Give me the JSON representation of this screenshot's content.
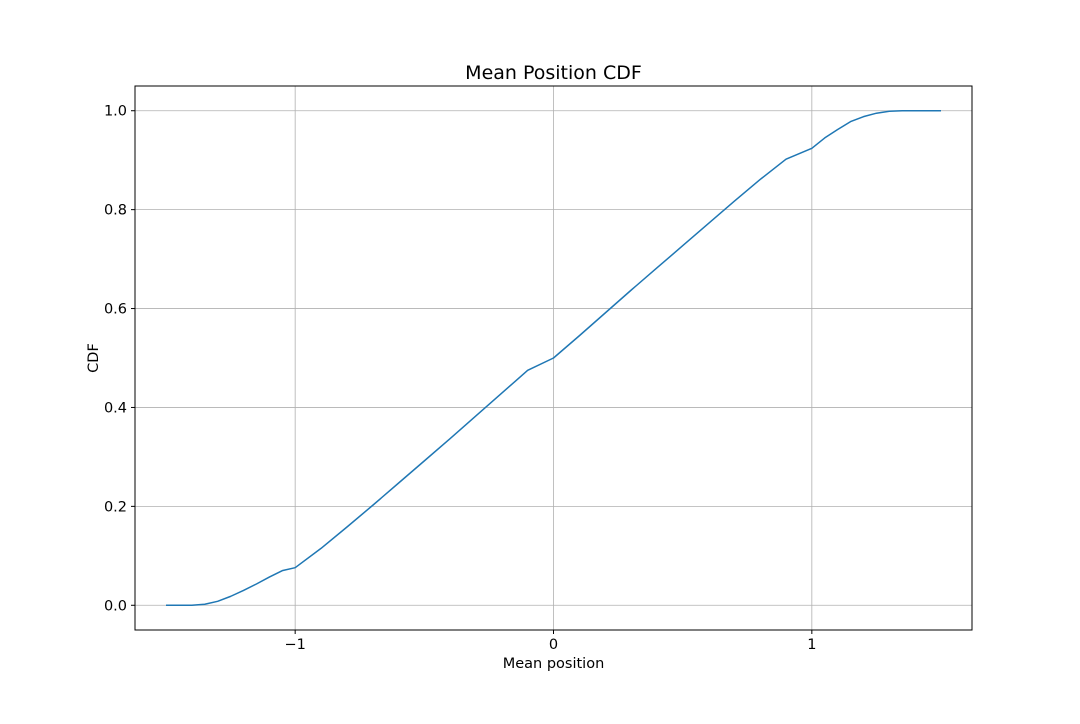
{
  "chart_data": {
    "type": "line",
    "title": "Mean Position CDF",
    "xlabel": "Mean position",
    "ylabel": "CDF",
    "xlim": [
      -1.62,
      1.62
    ],
    "ylim": [
      -0.05,
      1.05
    ],
    "xticks": [
      -1,
      0,
      1
    ],
    "xtick_labels": [
      "−1",
      "0",
      "1"
    ],
    "yticks": [
      0.0,
      0.2,
      0.4,
      0.6,
      0.8,
      1.0
    ],
    "ytick_labels": [
      "0.0",
      "0.2",
      "0.4",
      "0.6",
      "0.8",
      "1.0"
    ],
    "grid": true,
    "series": [
      {
        "color": "#1f77b4",
        "x": [
          -1.5,
          -1.45,
          -1.4,
          -1.35,
          -1.3,
          -1.25,
          -1.2,
          -1.15,
          -1.1,
          -1.05,
          -1.0,
          -0.9,
          -0.8,
          -0.7,
          -0.6,
          -0.5,
          -0.4,
          -0.3,
          -0.2,
          -0.1,
          0.0,
          0.1,
          0.2,
          0.3,
          0.4,
          0.5,
          0.6,
          0.7,
          0.8,
          0.9,
          1.0,
          1.05,
          1.1,
          1.15,
          1.2,
          1.25,
          1.3,
          1.35,
          1.4,
          1.45,
          1.5
        ],
        "y": [
          0.0,
          0.0,
          0.0,
          0.002,
          0.008,
          0.018,
          0.03,
          0.043,
          0.057,
          0.07,
          0.076,
          0.115,
          0.158,
          0.202,
          0.247,
          0.292,
          0.337,
          0.383,
          0.429,
          0.475,
          0.5,
          0.545,
          0.591,
          0.637,
          0.682,
          0.727,
          0.772,
          0.817,
          0.861,
          0.902,
          0.924,
          0.945,
          0.962,
          0.978,
          0.988,
          0.995,
          0.999,
          1.0,
          1.0,
          1.0,
          1.0
        ]
      }
    ]
  }
}
